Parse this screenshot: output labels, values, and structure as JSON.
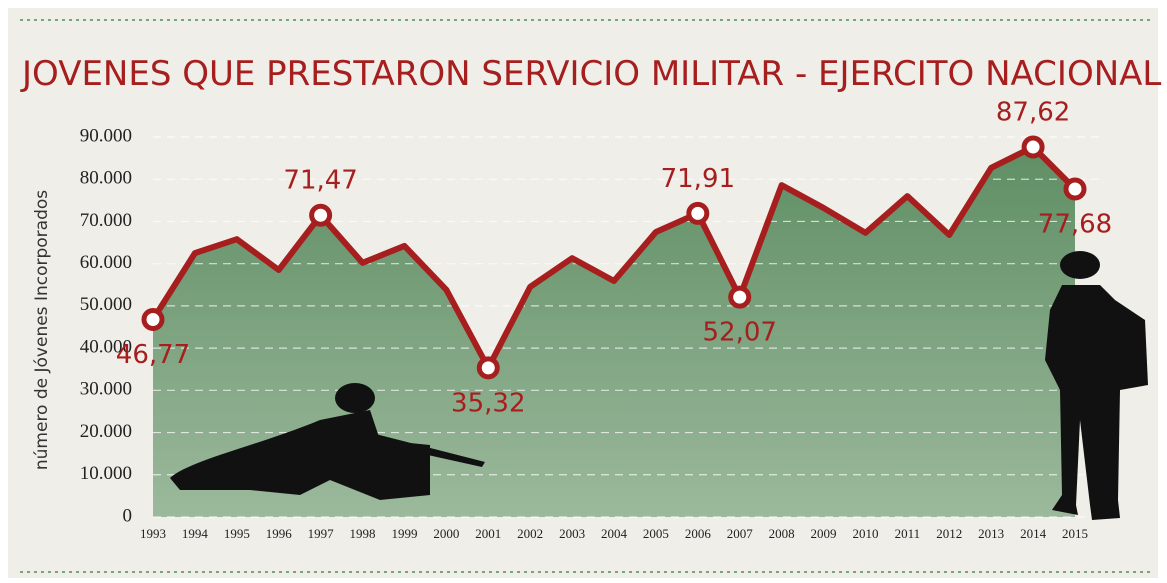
{
  "chart_data": {
    "type": "area",
    "title": "JOVENES QUE PRESTARON SERVICIO MILITAR - EJERCITO NACIONAL",
    "y_label": "número de Jóvenes Incorporados",
    "categories": [
      "1993",
      "1994",
      "1995",
      "1996",
      "1997",
      "1998",
      "1999",
      "2000",
      "2001",
      "2002",
      "2003",
      "2004",
      "2005",
      "2006",
      "2007",
      "2008",
      "2009",
      "2010",
      "2011",
      "2012",
      "2013",
      "2014",
      "2015"
    ],
    "series": [
      {
        "name": "Jóvenes incorporados",
        "color": "#a61e1e",
        "values": [
          46770,
          62500,
          65800,
          58500,
          71470,
          60200,
          64200,
          53800,
          35320,
          54500,
          61300,
          55900,
          67500,
          71910,
          52070,
          78600,
          73200,
          67300,
          76000,
          66800,
          82700,
          87620,
          77680
        ],
        "value_labels": [
          "46,77",
          null,
          null,
          null,
          "71,47",
          null,
          null,
          null,
          "35,32",
          null,
          null,
          null,
          null,
          "71,91",
          "52,07",
          null,
          null,
          null,
          null,
          null,
          null,
          "87,62",
          "77,68"
        ]
      }
    ],
    "ylim": [
      0,
      90000
    ],
    "yticks": [
      0,
      {
        "value": 10000,
        "label": "10.000"
      },
      {
        "value": 20000,
        "label": "20.000"
      },
      {
        "value": 30000,
        "label": "30.000"
      },
      {
        "value": 40000,
        "label": "40.000"
      },
      {
        "value": 50000,
        "label": "50.000"
      },
      {
        "value": 60000,
        "label": "60.000"
      },
      {
        "value": 70000,
        "label": "70.000"
      },
      {
        "value": 80000,
        "label": "80.000"
      },
      {
        "value": 90000,
        "label": "90.000"
      }
    ],
    "grid": true,
    "fill_color": "#6f9a72"
  }
}
